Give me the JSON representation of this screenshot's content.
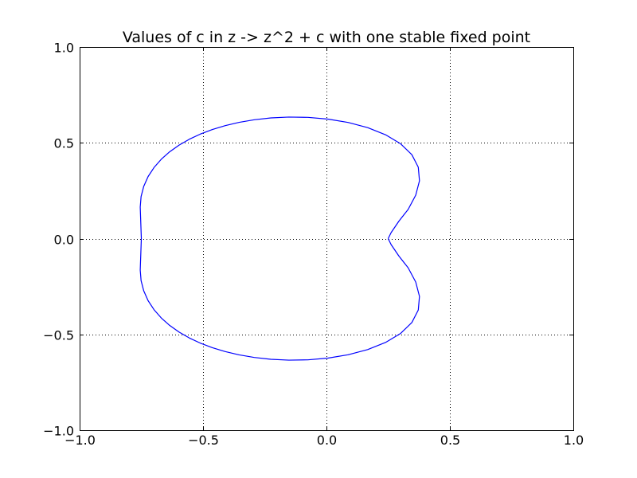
{
  "chart_data": {
    "type": "line",
    "title": "Values of c in z -> z^2 + c with one stable fixed point",
    "xlabel": "",
    "ylabel": "",
    "xlim": [
      -1.0,
      1.0
    ],
    "ylim": [
      -1.0,
      1.0
    ],
    "xticks": [
      -1.0,
      -0.5,
      0.0,
      0.5,
      1.0
    ],
    "yticks": [
      -1.0,
      -0.5,
      0.0,
      0.5,
      1.0
    ],
    "xtick_labels": [
      "−1.0",
      "−0.5",
      "0.0",
      "0.5",
      "1.0"
    ],
    "ytick_labels": [
      "−1.0",
      "−0.5",
      "0.0",
      "0.5",
      "1.0"
    ],
    "grid": true,
    "series": [
      {
        "color": "#0000ff",
        "x": [
          0.25,
          0.2619,
          0.2934,
          0.3309,
          0.3616,
          0.3768,
          0.372,
          0.346,
          0.3006,
          0.2394,
          0.1669,
          0.0876,
          0.0058,
          -0.075,
          -0.1524,
          -0.225,
          -0.2921,
          -0.3537,
          -0.4102,
          -0.4622,
          -0.5105,
          -0.5553,
          -0.5969,
          -0.635,
          -0.6691,
          -0.6986,
          -0.7226,
          -0.7402,
          -0.751,
          -0.7545,
          -0.75,
          -0.7545,
          -0.751,
          -0.7402,
          -0.7226,
          -0.6986,
          -0.6691,
          -0.635,
          -0.5969,
          -0.5553,
          -0.5105,
          -0.4622,
          -0.4102,
          -0.3537,
          -0.2921,
          -0.225,
          -0.1524,
          -0.075,
          0.0058,
          0.0876,
          0.1669,
          0.2394,
          0.3006,
          0.346,
          0.372,
          0.3768,
          0.3616,
          0.3309,
          0.2934,
          0.2619,
          0.25
        ],
        "y": [
          0.0,
          0.0312,
          0.091,
          0.1524,
          0.2266,
          0.3016,
          0.3728,
          0.4379,
          0.4947,
          0.542,
          0.5792,
          0.6063,
          0.6238,
          0.6328,
          0.6344,
          0.6299,
          0.6204,
          0.6068,
          0.5897,
          0.5693,
          0.5458,
          0.5188,
          0.4881,
          0.4533,
          0.4143,
          0.371,
          0.3238,
          0.2731,
          0.2196,
          0.1645,
          0.0,
          -0.1645,
          -0.2196,
          -0.2731,
          -0.3238,
          -0.371,
          -0.4143,
          -0.4533,
          -0.4881,
          -0.5188,
          -0.5458,
          -0.5693,
          -0.5897,
          -0.6068,
          -0.6204,
          -0.6299,
          -0.6344,
          -0.6328,
          -0.6238,
          -0.6063,
          -0.5792,
          -0.542,
          -0.4947,
          -0.4379,
          -0.3728,
          -0.3016,
          -0.2266,
          -0.1524,
          -0.091,
          -0.0312,
          0.0
        ]
      }
    ]
  }
}
